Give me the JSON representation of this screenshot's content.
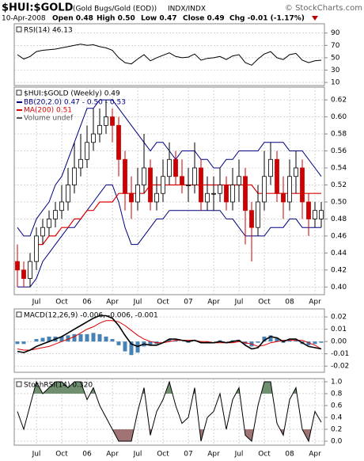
{
  "header": {
    "symbol": "$HUI:$GOLD",
    "name": "(Gold Bugs/Gold (EOD))",
    "exchange": "INDX/INDX",
    "credit": "© StockCharts.com",
    "date": "10-Apr-2008",
    "open": "Open 0.48",
    "high": "High 0.50",
    "low": "Low 0.47",
    "close": "Close 0.49",
    "change": "Chg -0.01 (-1.17%)"
  },
  "chart_data": [
    {
      "type": "line",
      "title": "RSI(14) 46.13",
      "color": "#000000",
      "values": [
        55,
        48,
        52,
        60,
        62,
        63,
        64,
        66,
        68,
        70,
        72,
        70,
        71,
        68,
        66,
        62,
        50,
        42,
        40,
        48,
        55,
        45,
        50,
        54,
        58,
        52,
        50,
        51,
        56,
        46,
        49,
        50,
        52,
        47,
        53,
        55,
        42,
        38,
        48,
        56,
        60,
        50,
        47,
        55,
        57,
        46,
        42,
        45,
        46
      ],
      "ylim": [
        5,
        105
      ],
      "yticks": [
        90,
        70,
        50,
        30,
        10
      ],
      "grid": true
    },
    {
      "type": "candlestick",
      "title": "$HUI:$GOLD (Weekly) 0.49",
      "up_color": "#000000",
      "down_color": "#cc0000",
      "categories": [
        null,
        null,
        null,
        "Jul",
        null,
        null,
        null,
        "Oct",
        null,
        null,
        null,
        "06",
        null,
        null,
        null,
        "Apr",
        null,
        null,
        null,
        "Jul",
        null,
        null,
        null,
        "Oct",
        null,
        null,
        null,
        "07",
        null,
        null,
        null,
        "Apr",
        null,
        null,
        null,
        "Jul",
        null,
        null,
        null,
        "Oct",
        null,
        null,
        null,
        "08",
        null,
        null,
        null,
        "Apr",
        null
      ],
      "open": [
        0.43,
        0.42,
        0.41,
        0.43,
        0.46,
        0.47,
        0.48,
        0.49,
        0.5,
        0.52,
        0.54,
        0.55,
        0.57,
        0.58,
        0.59,
        0.6,
        0.59,
        0.55,
        0.51,
        0.5,
        0.52,
        0.54,
        0.5,
        0.51,
        0.53,
        0.55,
        0.53,
        0.52,
        0.52,
        0.54,
        0.5,
        0.51,
        0.51,
        0.52,
        0.5,
        0.52,
        0.53,
        0.49,
        0.47,
        0.5,
        0.53,
        0.55,
        0.51,
        0.5,
        0.53,
        0.54,
        0.5,
        0.48,
        0.48
      ],
      "high": [
        0.45,
        0.43,
        0.44,
        0.47,
        0.48,
        0.49,
        0.5,
        0.52,
        0.54,
        0.57,
        0.58,
        0.59,
        0.61,
        0.61,
        0.62,
        0.61,
        0.6,
        0.56,
        0.53,
        0.54,
        0.58,
        0.55,
        0.53,
        0.55,
        0.57,
        0.56,
        0.55,
        0.54,
        0.57,
        0.55,
        0.53,
        0.53,
        0.54,
        0.53,
        0.54,
        0.55,
        0.54,
        0.5,
        0.52,
        0.56,
        0.57,
        0.56,
        0.53,
        0.55,
        0.56,
        0.55,
        0.51,
        0.5,
        0.5
      ],
      "low": [
        0.4,
        0.4,
        0.4,
        0.42,
        0.45,
        0.46,
        0.47,
        0.48,
        0.49,
        0.51,
        0.53,
        0.54,
        0.56,
        0.57,
        0.58,
        0.57,
        0.53,
        0.49,
        0.48,
        0.49,
        0.51,
        0.49,
        0.49,
        0.5,
        0.52,
        0.52,
        0.51,
        0.5,
        0.51,
        0.49,
        0.49,
        0.49,
        0.5,
        0.49,
        0.49,
        0.5,
        0.45,
        0.43,
        0.46,
        0.49,
        0.52,
        0.5,
        0.48,
        0.49,
        0.51,
        0.48,
        0.46,
        0.47,
        0.47
      ],
      "close": [
        0.42,
        0.41,
        0.43,
        0.46,
        0.47,
        0.48,
        0.49,
        0.5,
        0.52,
        0.54,
        0.55,
        0.57,
        0.58,
        0.59,
        0.6,
        0.59,
        0.55,
        0.51,
        0.5,
        0.52,
        0.54,
        0.5,
        0.51,
        0.53,
        0.55,
        0.53,
        0.52,
        0.52,
        0.54,
        0.5,
        0.51,
        0.51,
        0.52,
        0.5,
        0.52,
        0.53,
        0.49,
        0.47,
        0.5,
        0.53,
        0.55,
        0.51,
        0.5,
        0.53,
        0.54,
        0.5,
        0.48,
        0.49,
        0.49
      ],
      "bands": {
        "name": "BB(20,2.0) 0.47 - 0.50 - 0.53",
        "color": "#000080",
        "upper": [
          0.47,
          0.46,
          0.46,
          0.48,
          0.49,
          0.5,
          0.52,
          0.53,
          0.55,
          0.57,
          0.59,
          0.61,
          0.61,
          0.62,
          0.62,
          0.62,
          0.61,
          0.6,
          0.59,
          0.58,
          0.57,
          0.56,
          0.57,
          0.57,
          0.56,
          0.55,
          0.56,
          0.56,
          0.56,
          0.55,
          0.55,
          0.54,
          0.54,
          0.55,
          0.55,
          0.56,
          0.56,
          0.56,
          0.56,
          0.57,
          0.57,
          0.57,
          0.57,
          0.56,
          0.56,
          0.56,
          0.55,
          0.54,
          0.53
        ],
        "lower": [
          0.4,
          0.4,
          0.4,
          0.41,
          0.43,
          0.44,
          0.45,
          0.46,
          0.47,
          0.47,
          0.48,
          0.49,
          0.5,
          0.51,
          0.52,
          0.52,
          0.5,
          0.47,
          0.45,
          0.45,
          0.46,
          0.47,
          0.48,
          0.48,
          0.49,
          0.49,
          0.49,
          0.49,
          0.49,
          0.49,
          0.49,
          0.49,
          0.49,
          0.48,
          0.48,
          0.47,
          0.46,
          0.46,
          0.46,
          0.46,
          0.47,
          0.47,
          0.47,
          0.48,
          0.48,
          0.47,
          0.47,
          0.47,
          0.47
        ]
      },
      "ma": {
        "name": "MA(200) 0.51",
        "color": "#dd0000",
        "values": [
          null,
          null,
          null,
          0.45,
          0.45,
          0.46,
          0.46,
          0.47,
          0.47,
          0.48,
          0.48,
          0.49,
          0.49,
          0.5,
          0.5,
          0.5,
          0.51,
          0.51,
          0.51,
          0.51,
          0.51,
          0.52,
          0.52,
          0.52,
          0.52,
          0.52,
          0.52,
          0.52,
          0.52,
          0.52,
          0.52,
          0.52,
          0.52,
          0.52,
          0.52,
          0.52,
          0.52,
          0.52,
          0.51,
          0.51,
          0.51,
          0.51,
          0.51,
          0.51,
          0.51,
          0.51,
          0.51,
          0.51,
          0.51
        ]
      },
      "volume_label": "Volume undef",
      "ylim": [
        0.391,
        0.635
      ],
      "yticks": [
        {
          "value": 0.62,
          "label": "0.62"
        },
        {
          "value": 0.6,
          "label": "0.60"
        },
        0.58,
        0.56,
        0.54,
        0.52,
        {
          "value": 0.5,
          "label": "0.50"
        },
        0.48,
        0.46,
        0.44,
        0.42,
        {
          "value": 0.4,
          "label": "0.40"
        }
      ],
      "grid": true
    },
    {
      "type": "macd",
      "title": "MACD(12,26,9) -0.006, -0.006, -0.001",
      "macd": {
        "color": "#000000",
        "values": [
          -0.008,
          -0.009,
          -0.007,
          -0.004,
          -0.002,
          0.0,
          0.002,
          0.004,
          0.007,
          0.01,
          0.013,
          0.016,
          0.019,
          0.021,
          0.021,
          0.019,
          0.013,
          0.005,
          -0.002,
          -0.004,
          -0.002,
          -0.003,
          -0.003,
          -0.001,
          0.002,
          0.002,
          0.001,
          0.0,
          0.001,
          -0.001,
          -0.001,
          -0.001,
          0.0,
          -0.001,
          0.0,
          0.001,
          -0.003,
          -0.006,
          -0.005,
          0.001,
          0.004,
          0.003,
          0.0,
          0.002,
          0.002,
          -0.001,
          -0.004,
          -0.005,
          -0.006
        ]
      },
      "signal": {
        "color": "#dd0000",
        "values": [
          -0.006,
          -0.007,
          -0.007,
          -0.006,
          -0.005,
          -0.004,
          -0.002,
          0.0,
          0.002,
          0.004,
          0.007,
          0.01,
          0.012,
          0.015,
          0.017,
          0.017,
          0.016,
          0.013,
          0.009,
          0.005,
          0.002,
          0.0,
          -0.001,
          -0.001,
          0.0,
          0.001,
          0.001,
          0.001,
          0.001,
          0.0,
          0.0,
          -0.001,
          -0.001,
          -0.001,
          -0.001,
          0.0,
          -0.001,
          -0.002,
          -0.004,
          -0.003,
          -0.001,
          0.0,
          0.001,
          0.001,
          0.001,
          0.001,
          -0.001,
          -0.003,
          -0.006
        ]
      },
      "histogram": {
        "color": "#4682b4",
        "values": [
          -0.002,
          -0.002,
          0.0,
          0.002,
          0.003,
          0.004,
          0.004,
          0.004,
          0.005,
          0.006,
          0.006,
          0.006,
          0.007,
          0.006,
          0.004,
          0.002,
          -0.003,
          -0.008,
          -0.011,
          -0.009,
          -0.004,
          -0.003,
          -0.002,
          0.0,
          0.002,
          0.001,
          0.0,
          -0.001,
          0.0,
          -0.001,
          -0.001,
          0.0,
          0.001,
          0.0,
          0.001,
          0.001,
          -0.002,
          -0.004,
          -0.001,
          0.004,
          0.005,
          0.003,
          -0.001,
          0.001,
          0.001,
          -0.002,
          -0.003,
          -0.002,
          -0.001
        ]
      },
      "ylim": [
        -0.025,
        0.0265
      ],
      "yticks": [
        0.02,
        0.01,
        {
          "value": 0,
          "label": "0.00"
        },
        -0.01,
        -0.02
      ],
      "grid": true
    },
    {
      "type": "line",
      "title": "StochRSI(14) 0.320",
      "color": "#000000",
      "fill_colors": [
        "#6f8f6f",
        "#a07474"
      ],
      "categories": [
        null,
        null,
        null,
        "Jul",
        null,
        null,
        null,
        "Oct",
        null,
        null,
        null,
        "06",
        null,
        null,
        null,
        "Apr",
        null,
        null,
        null,
        "Jul",
        null,
        null,
        null,
        "Oct",
        null,
        null,
        null,
        "07",
        null,
        null,
        null,
        "Apr",
        null,
        null,
        null,
        "Jul",
        null,
        null,
        null,
        "Oct",
        null,
        null,
        null,
        "08",
        null,
        null,
        null,
        "Apr",
        null
      ],
      "values": [
        0.5,
        0.2,
        0.6,
        1.0,
        0.8,
        0.9,
        1.0,
        1.0,
        0.9,
        1.0,
        1.0,
        0.7,
        0.9,
        0.6,
        0.4,
        0.2,
        0.0,
        0.0,
        0.0,
        0.5,
        0.9,
        0.1,
        0.5,
        0.7,
        1.0,
        0.6,
        0.3,
        0.4,
        0.9,
        0.0,
        0.4,
        0.5,
        0.8,
        0.2,
        0.7,
        0.9,
        0.1,
        0.0,
        0.6,
        1.0,
        1.0,
        0.3,
        0.1,
        0.7,
        0.9,
        0.2,
        0.0,
        0.5,
        0.32
      ],
      "ylim": [
        -0.067,
        1.053
      ],
      "yticks": [
        {
          "value": 1,
          "label": "1.0"
        },
        0.8,
        0.6,
        0.4,
        0.2,
        {
          "value": 0,
          "label": "0.0"
        }
      ],
      "grid": true
    }
  ]
}
